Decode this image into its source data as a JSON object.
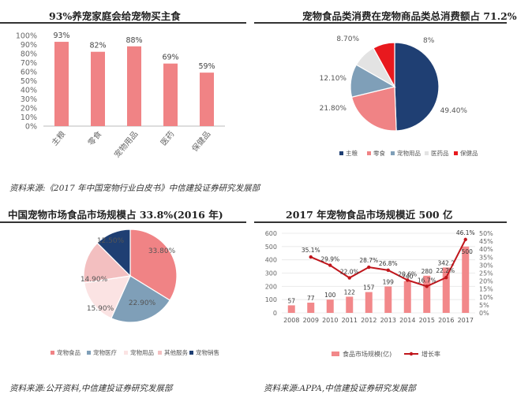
{
  "panels": {
    "tl": {
      "title": "93%养宠家庭会给宠物买主食"
    },
    "tr": {
      "title": "宠物食品类消费在宠物商品类总消费额占 71.2%"
    },
    "bl": {
      "title": "中国宠物市场食品市场规模占 33.8%(2016 年)"
    },
    "br": {
      "title": "2017 年宠物食品市场规模近 500 亿"
    }
  },
  "sources": {
    "top": "资料来源:《2017 年中国宠物行业白皮书》中信建投证券研究发展部",
    "bl": "资料来源:公开资料,中信建投证券研究发展部",
    "br": "资料来源:APPA,中信建投证券研究发展部"
  },
  "colors": {
    "pink": "#f08385",
    "navy": "#1f3f73",
    "steel": "#7f9fb8",
    "lightpink": "#f3bfc0",
    "red": "#e8191e",
    "gray": "#e3e3e3",
    "barpink": "#f2888a",
    "darkred": "#c0161c"
  },
  "chart_data": [
    {
      "type": "bar",
      "categories": [
        "主粮",
        "零食",
        "宠物用品",
        "医药",
        "保健品"
      ],
      "values": [
        93,
        82,
        88,
        69,
        59
      ],
      "data_labels": [
        "93%",
        "82%",
        "88%",
        "69%",
        "59%"
      ],
      "ylim": [
        0,
        100
      ],
      "yticks": [
        "0%",
        "10%",
        "20%",
        "30%",
        "40%",
        "50%",
        "60%",
        "70%",
        "80%",
        "90%",
        "100%"
      ],
      "grid": false
    },
    {
      "type": "pie",
      "labels": [
        "主粮",
        "零食",
        "宠物用品",
        "医药品",
        "保健品"
      ],
      "values": [
        49.4,
        21.8,
        12.1,
        8.7,
        8.0
      ],
      "data_labels": [
        "49.40%",
        "21.80%",
        "12.10%",
        "8.70%",
        "8%"
      ],
      "colors": [
        "#1f3f73",
        "#f08385",
        "#7f9fb8",
        "#e3e3e3",
        "#e8191e"
      ],
      "legend": "bottom"
    },
    {
      "type": "pie",
      "labels": [
        "宠物食品",
        "宠物医疗",
        "宠物用品",
        "其他服务",
        "宠物销售"
      ],
      "values": [
        33.8,
        22.9,
        15.9,
        14.9,
        12.5
      ],
      "data_labels": [
        "33.80%",
        "22.90%",
        "15.90%",
        "14.90%",
        "12.50%"
      ],
      "colors": [
        "#f08385",
        "#7f9fb8",
        "#fbe3e3",
        "#f3bfc0",
        "#1f3f73"
      ],
      "legend": "bottom"
    },
    {
      "type": "bar",
      "categories": [
        "2008",
        "2009",
        "2010",
        "2011",
        "2012",
        "2013",
        "2014",
        "2015",
        "2016",
        "2017"
      ],
      "series": [
        {
          "name": "食品市场规模(亿)",
          "type": "bar",
          "values": [
            57,
            77,
            100,
            122,
            157,
            199,
            240,
            280,
            342.2,
            500
          ],
          "data_labels": [
            "57",
            "77",
            "100",
            "122",
            "157",
            "199",
            "240",
            "280",
            "342.2",
            "500"
          ]
        },
        {
          "name": "增长率",
          "type": "line",
          "axis": "right",
          "values": [
            null,
            35.1,
            29.9,
            22.0,
            28.7,
            26.8,
            20.6,
            16.7,
            22.2,
            46.1
          ],
          "data_labels": [
            "",
            "35.1%",
            "29.9%",
            "22.0%",
            "28.7%",
            "26.8%",
            "20.6%",
            "16.7%",
            "22.2%",
            "46.1%"
          ]
        }
      ],
      "ylim": [
        0,
        600
      ],
      "yticks": [
        "0",
        "100",
        "200",
        "300",
        "400",
        "500",
        "600"
      ],
      "y2lim": [
        0,
        50
      ],
      "y2ticks": [
        "0%",
        "5%",
        "10%",
        "15%",
        "20%",
        "25%",
        "30%",
        "35%",
        "40%",
        "45%",
        "50%"
      ],
      "legend": "bottom",
      "grid": true
    }
  ]
}
